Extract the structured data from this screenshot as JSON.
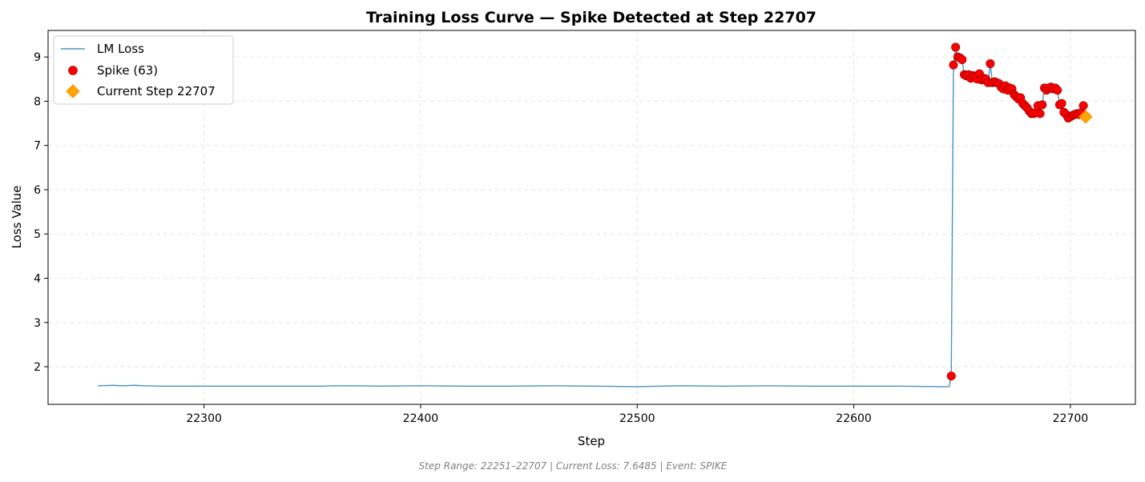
{
  "chart_data": {
    "type": "line",
    "title": "Training Loss Curve — Spike Detected at Step 22707",
    "xlabel": "Step",
    "ylabel": "Loss Value",
    "xlim": [
      22228,
      22730
    ],
    "ylim": [
      1.15,
      9.6
    ],
    "xticks": [
      22300,
      22400,
      22500,
      22600,
      22700
    ],
    "yticks": [
      2,
      3,
      4,
      5,
      6,
      7,
      8,
      9
    ],
    "grid": true,
    "legend_position": "top-left",
    "footer": "Step Range: 22251–22707 | Current Loss: 7.6485 | Event: SPIKE",
    "colors": {
      "line": "#1f77b4",
      "spike": "#ff0000",
      "spike_edge": "#8b0000",
      "current": "#ffa500",
      "current_edge": "#ff8c00"
    },
    "legend": [
      {
        "label": "LM Loss",
        "kind": "line"
      },
      {
        "label": "Spike (63)",
        "kind": "spike"
      },
      {
        "label": "Current Step 22707",
        "kind": "current"
      }
    ],
    "series": [
      {
        "name": "LM Loss",
        "x": [
          22251,
          22258,
          22262,
          22268,
          22272,
          22280,
          22300,
          22330,
          22355,
          22360,
          22370,
          22380,
          22400,
          22420,
          22440,
          22460,
          22480,
          22500,
          22520,
          22540,
          22560,
          22580,
          22600,
          22620,
          22640,
          22644,
          22645,
          22646,
          22647,
          22648,
          22649,
          22650,
          22651,
          22652,
          22653,
          22654,
          22655,
          22656,
          22657,
          22658,
          22659,
          22660,
          22661,
          22662,
          22663,
          22664,
          22665,
          22666,
          22667,
          22668,
          22669,
          22670,
          22671,
          22672,
          22673,
          22674,
          22675,
          22676,
          22677,
          22678,
          22679,
          22680,
          22681,
          22682,
          22683,
          22684,
          22685,
          22686,
          22687,
          22688,
          22689,
          22690,
          22691,
          22692,
          22693,
          22694,
          22695,
          22696,
          22697,
          22698,
          22699,
          22700,
          22701,
          22702,
          22703,
          22704,
          22705,
          22706,
          22707
        ],
        "y": [
          1.57,
          1.58,
          1.57,
          1.58,
          1.57,
          1.56,
          1.56,
          1.56,
          1.56,
          1.57,
          1.57,
          1.56,
          1.57,
          1.56,
          1.56,
          1.57,
          1.56,
          1.55,
          1.57,
          1.56,
          1.57,
          1.56,
          1.56,
          1.56,
          1.55,
          1.55,
          1.79,
          8.82,
          9.22,
          9.0,
          8.98,
          8.94,
          8.6,
          8.57,
          8.6,
          8.52,
          8.58,
          8.55,
          8.5,
          8.62,
          8.48,
          8.52,
          8.5,
          8.42,
          8.85,
          8.42,
          8.44,
          8.42,
          8.4,
          8.32,
          8.28,
          8.35,
          8.25,
          8.3,
          8.28,
          8.15,
          8.1,
          8.05,
          8.08,
          7.95,
          7.9,
          7.85,
          7.78,
          7.72,
          7.72,
          7.74,
          7.9,
          7.72,
          7.92,
          8.3,
          8.25,
          8.3,
          8.32,
          8.28,
          8.3,
          8.25,
          7.92,
          7.95,
          7.75,
          7.7,
          7.62,
          7.65,
          7.68,
          7.7,
          7.72,
          7.7,
          7.74,
          7.9,
          7.65
        ]
      },
      {
        "name": "Spike (63)",
        "x": [
          22645,
          22646,
          22647,
          22648,
          22649,
          22650,
          22651,
          22652,
          22653,
          22654,
          22655,
          22656,
          22657,
          22658,
          22659,
          22660,
          22661,
          22662,
          22663,
          22664,
          22665,
          22666,
          22667,
          22668,
          22669,
          22670,
          22671,
          22672,
          22673,
          22674,
          22675,
          22676,
          22677,
          22678,
          22679,
          22680,
          22681,
          22682,
          22683,
          22684,
          22685,
          22686,
          22687,
          22688,
          22689,
          22690,
          22691,
          22692,
          22693,
          22694,
          22695,
          22696,
          22697,
          22698,
          22699,
          22700,
          22701,
          22702,
          22703,
          22704,
          22705,
          22706,
          22707
        ],
        "y": [
          1.79,
          8.82,
          9.22,
          9.0,
          8.98,
          8.94,
          8.6,
          8.57,
          8.6,
          8.52,
          8.58,
          8.55,
          8.5,
          8.62,
          8.48,
          8.52,
          8.5,
          8.42,
          8.85,
          8.42,
          8.44,
          8.42,
          8.4,
          8.32,
          8.28,
          8.35,
          8.25,
          8.3,
          8.28,
          8.15,
          8.1,
          8.05,
          8.08,
          7.95,
          7.9,
          7.85,
          7.78,
          7.72,
          7.72,
          7.74,
          7.9,
          7.72,
          7.92,
          8.3,
          8.25,
          8.3,
          8.32,
          8.28,
          8.3,
          8.25,
          7.92,
          7.95,
          7.75,
          7.7,
          7.62,
          7.65,
          7.68,
          7.7,
          7.72,
          7.7,
          7.74,
          7.9,
          7.65
        ]
      },
      {
        "name": "Current Step 22707",
        "x": [
          22707
        ],
        "y": [
          7.6485
        ]
      }
    ]
  }
}
